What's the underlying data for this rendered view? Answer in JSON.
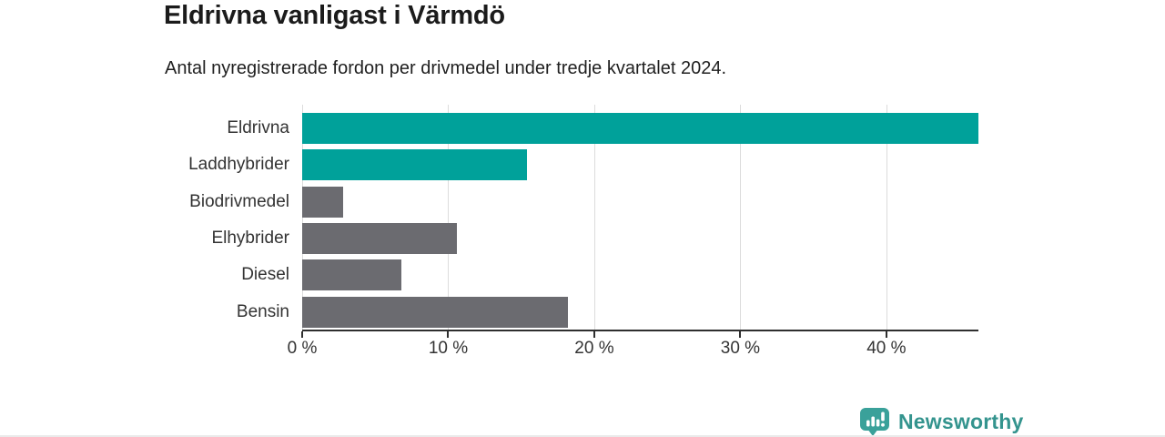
{
  "header": {
    "title": "Eldrivna vanligast i Värmdö",
    "subtitle": "Antal nyregistrerade fordon per drivmedel under tredje kvartalet 2024."
  },
  "chart_data": {
    "type": "bar",
    "orientation": "horizontal",
    "title": "Eldrivna vanligast i Värmdö",
    "subtitle": "Antal nyregistrerade fordon per drivmedel under tredje kvartalet 2024.",
    "categories": [
      "Eldrivna",
      "Laddhybrider",
      "Biodrivmedel",
      "Elhybrider",
      "Diesel",
      "Bensin"
    ],
    "values": [
      46.3,
      15.4,
      2.8,
      10.6,
      6.8,
      18.2
    ],
    "unit": "%",
    "bar_colors": [
      "#00a19a",
      "#00a19a",
      "#6b6b70",
      "#6b6b70",
      "#6b6b70",
      "#6b6b70"
    ],
    "x_ticks": [
      0,
      10,
      20,
      30,
      40
    ],
    "x_tick_labels": [
      "0 %",
      "10 %",
      "20 %",
      "30 %",
      "40 %"
    ],
    "xlim": [
      0,
      46.3
    ],
    "grid": true,
    "legend": "none",
    "xlabel": "",
    "ylabel": ""
  },
  "colors": {
    "highlight_bar": "#00a19a",
    "default_bar": "#6b6b70",
    "gridline": "#dcdcdc",
    "axis": "#2f2f2f",
    "title_text": "#1b1b1b",
    "label_text": "#333333",
    "brand_teal": "#34948e"
  },
  "footer": {
    "brand": "Newsworthy",
    "logo_icon": "bar-chart-speech-bubble-icon"
  }
}
